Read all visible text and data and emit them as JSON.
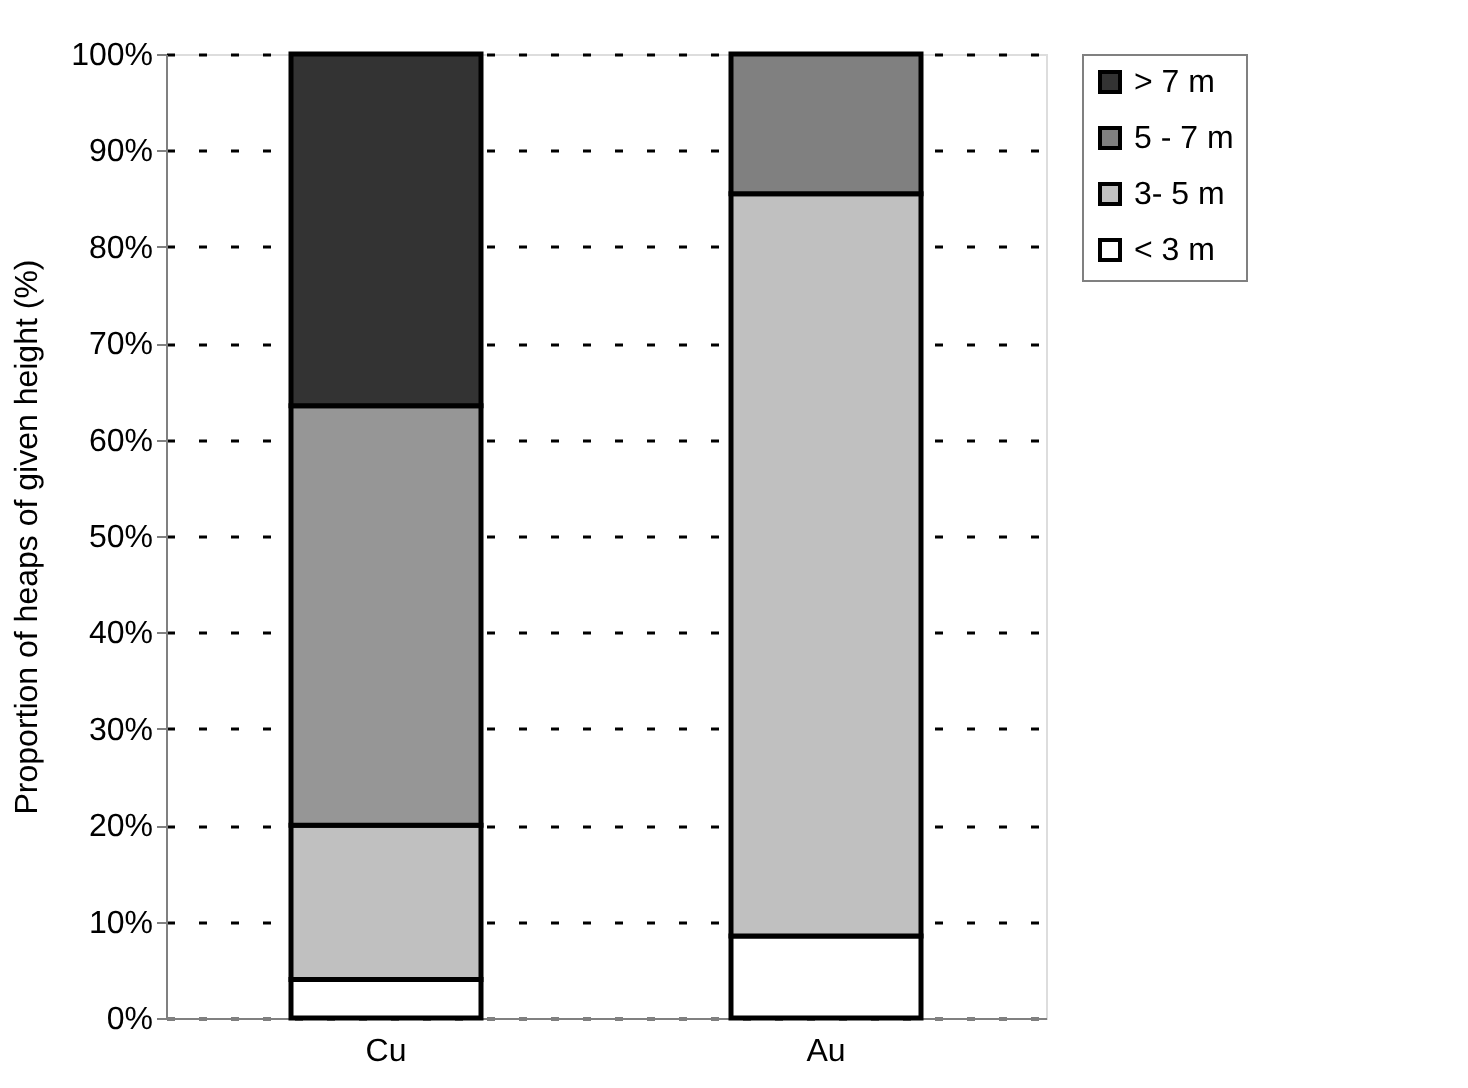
{
  "chart_data": {
    "type": "bar",
    "stacked": true,
    "ylabel": "Proportion of heaps of given height (%)",
    "categories": [
      "Cu",
      "Au"
    ],
    "series": [
      {
        "name": "< 3 m",
        "color": "#ffffff",
        "values": [
          4,
          8.5
        ]
      },
      {
        "name": "3- 5 m",
        "color": "#c0c0c0",
        "values": [
          16,
          77
        ]
      },
      {
        "name": "5 - 7 m",
        "color": "#808080",
        "colors": [
          "#969696",
          "#808080"
        ],
        "values": [
          43.5,
          14.5
        ]
      },
      {
        "name": "> 7 m",
        "color": "#333333",
        "values": [
          36.5,
          0
        ]
      }
    ],
    "ylim": [
      0,
      100
    ],
    "yticks": [
      {
        "value": 0,
        "label": "0%"
      },
      {
        "value": 10,
        "label": "10%"
      },
      {
        "value": 20,
        "label": "20%"
      },
      {
        "value": 30,
        "label": "30%"
      },
      {
        "value": 40,
        "label": "40%"
      },
      {
        "value": 50,
        "label": "50%"
      },
      {
        "value": 60,
        "label": "60%"
      },
      {
        "value": 70,
        "label": "70%"
      },
      {
        "value": 80,
        "label": "80%"
      },
      {
        "value": 90,
        "label": "90%"
      },
      {
        "value": 100,
        "label": "100%"
      }
    ],
    "grid": "y",
    "legend": "right"
  }
}
